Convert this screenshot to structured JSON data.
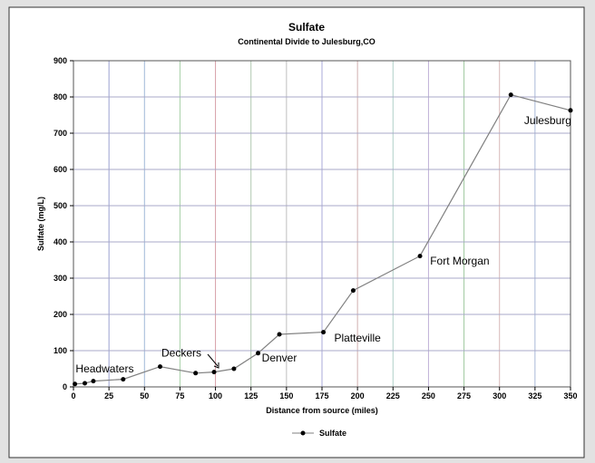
{
  "chart_data": {
    "type": "line",
    "title": "Sulfate",
    "subtitle": "Continental Divide to Julesburg,CO",
    "xlabel": "Distance from source (miles)",
    "ylabel": "Sulfate (mg/L)",
    "xlim": [
      0,
      350
    ],
    "ylim": [
      0,
      900
    ],
    "xticks": [
      "0",
      "25",
      "50",
      "75",
      "100",
      "125",
      "150",
      "175",
      "200",
      "225",
      "250",
      "275",
      "300",
      "325",
      "350"
    ],
    "yticks": [
      "0",
      "100",
      "200",
      "300",
      "400",
      "500",
      "600",
      "700",
      "800",
      "900"
    ],
    "grid": true,
    "legend_position": "bottom",
    "series": [
      {
        "name": "Sulfate",
        "color": "#808080",
        "marker_color": "#000000",
        "points": [
          [
            1,
            8
          ],
          [
            8,
            10
          ],
          [
            14,
            16
          ],
          [
            35,
            21
          ],
          [
            61,
            56
          ],
          [
            86,
            38
          ],
          [
            99,
            41
          ],
          [
            113,
            50
          ],
          [
            130,
            93
          ],
          [
            145,
            145
          ],
          [
            176,
            151
          ],
          [
            197,
            266
          ],
          [
            244,
            361
          ],
          [
            308,
            806
          ],
          [
            350,
            763
          ]
        ]
      }
    ],
    "annotations": [
      {
        "text": "Headwaters",
        "x": 22,
        "y": 40
      },
      {
        "text": "Deckers",
        "x": 76,
        "y": 84
      },
      {
        "text": "Denver",
        "x": 145,
        "y": 70
      },
      {
        "text": "Platteville",
        "x": 200,
        "y": 125
      },
      {
        "text": "Fort Morgan",
        "x": 272,
        "y": 338
      },
      {
        "text": "Julesburg",
        "x": 334,
        "y": 725
      }
    ]
  },
  "grid_colors": [
    "#c8a0a0",
    "#9aa0d0",
    "#a0b8d8",
    "#a8d0a8",
    "#d8a0a8",
    "#b0c8b0",
    "#c0c0c0",
    "#a8a8d8",
    "#d0b0b0",
    "#b0d0c8",
    "#c0b0d8",
    "#a0c8a0",
    "#d8b8b8",
    "#a8b8d8",
    "#c8c8a8"
  ]
}
